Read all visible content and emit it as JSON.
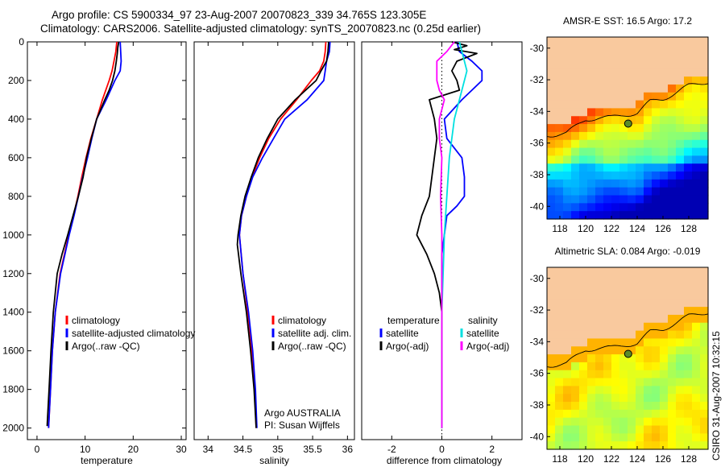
{
  "header": {
    "line1": "Argo profile: CS 5900334_97 23-Aug-2007 20070823_339 34.765S 123.305E",
    "line2": "Climatology: CARS2006. Satellite-adjusted climatology: synTS_20070823.nc (0.25d earlier)"
  },
  "colors": {
    "climatology": "#ff0000",
    "satellite": "#0000ff",
    "argo": "#000000",
    "satellite_cyan": "#00e0e0",
    "argo_adj_magenta": "#ff00ff",
    "land": "#f9c99e",
    "marker": "#5b8c2a"
  },
  "chart_data": [
    {
      "type": "line",
      "id": "temperature",
      "xlabel": "temperature",
      "ylabel": "",
      "xlim": [
        -2,
        31
      ],
      "ylim": [
        2060,
        0
      ],
      "y_inverted": true,
      "xticks": [
        0,
        10,
        20,
        30
      ],
      "yticks": [
        0,
        200,
        400,
        600,
        800,
        1000,
        1200,
        1400,
        1600,
        1800,
        2000
      ],
      "legend": {
        "position": "lower-right",
        "entries": [
          "climatology",
          "satellite-adjusted climatology",
          "Argo(..raw -QC)"
        ]
      },
      "series": [
        {
          "name": "climatology",
          "color": "#ff0000",
          "depth": [
            0,
            50,
            100,
            150,
            200,
            300,
            400,
            500,
            600,
            700,
            800,
            900,
            1000,
            1100,
            1200,
            1400,
            1600,
            1800,
            2000
          ],
          "values": [
            16.6,
            16.4,
            16.0,
            15.6,
            15.0,
            13.6,
            12.4,
            11.2,
            10.2,
            9.3,
            8.5,
            7.6,
            6.6,
            5.7,
            4.8,
            3.8,
            3.2,
            2.8,
            2.4
          ]
        },
        {
          "name": "satellite-adjusted climatology",
          "color": "#0000ff",
          "depth": [
            0,
            50,
            100,
            150,
            200,
            300,
            400,
            500,
            600,
            700,
            800,
            900,
            1000,
            1100,
            1200,
            1400,
            1600,
            1800,
            2000
          ],
          "values": [
            17.3,
            17.4,
            17.5,
            17.3,
            16.2,
            14.4,
            12.4,
            11.4,
            10.5,
            9.5,
            8.6,
            7.7,
            6.7,
            5.8,
            4.9,
            3.8,
            3.2,
            2.8,
            2.4
          ]
        },
        {
          "name": "Argo(..raw -QC)",
          "color": "#000000",
          "depth": [
            0,
            30,
            60,
            100,
            150,
            200,
            250,
            300,
            400,
            500,
            600,
            700,
            800,
            900,
            1000,
            1100,
            1200,
            1400,
            1600,
            1800,
            1990
          ],
          "values": [
            17.0,
            16.8,
            16.7,
            16.5,
            16.2,
            15.7,
            15.0,
            14.1,
            12.4,
            11.3,
            10.3,
            9.6,
            8.6,
            7.5,
            6.4,
            5.2,
            4.2,
            3.4,
            2.9,
            2.5,
            2.1
          ]
        }
      ]
    },
    {
      "type": "line",
      "id": "salinity",
      "xlabel": "salinity",
      "ylabel": "",
      "xlim": [
        33.8,
        36.1
      ],
      "ylim": [
        2060,
        0
      ],
      "y_inverted": true,
      "xticks": [
        34,
        34.5,
        35,
        35.5,
        36
      ],
      "xticklabels": [
        "34",
        "34.5",
        "35",
        "35.5",
        "36"
      ],
      "legend": {
        "position": "lower-right",
        "entries": [
          "climatology",
          "satellite adj. clim.",
          "Argo(..raw -QC)"
        ]
      },
      "annotation": [
        "Argo AUSTRALIA",
        "PI: Susan Wijffels"
      ],
      "series": [
        {
          "name": "climatology",
          "color": "#ff0000",
          "depth": [
            0,
            50,
            100,
            150,
            200,
            300,
            400,
            500,
            600,
            700,
            800,
            900,
            1000,
            1200,
            1400,
            1600,
            1800,
            2000
          ],
          "values": [
            35.69,
            35.68,
            35.66,
            35.6,
            35.48,
            35.27,
            35.04,
            34.87,
            34.74,
            34.63,
            34.55,
            34.48,
            34.45,
            34.5,
            34.57,
            34.63,
            34.67,
            34.69
          ]
        },
        {
          "name": "satellite adj. clim.",
          "color": "#0000ff",
          "depth": [
            0,
            50,
            100,
            150,
            200,
            300,
            400,
            500,
            600,
            700,
            800,
            900,
            1000,
            1200,
            1400,
            1600,
            1800,
            2000
          ],
          "values": [
            35.75,
            35.74,
            35.7,
            35.68,
            35.66,
            35.42,
            35.1,
            34.94,
            34.78,
            34.64,
            34.55,
            34.48,
            34.45,
            34.5,
            34.58,
            34.64,
            34.68,
            34.7
          ]
        },
        {
          "name": "Argo(..raw -QC)",
          "color": "#000000",
          "depth": [
            0,
            50,
            100,
            150,
            200,
            250,
            300,
            400,
            500,
            600,
            700,
            800,
            900,
            1000,
            1050,
            1200,
            1400,
            1600,
            1800,
            2000
          ],
          "values": [
            35.73,
            35.72,
            35.7,
            35.62,
            35.55,
            35.4,
            35.25,
            35.0,
            34.85,
            34.72,
            34.62,
            34.53,
            34.47,
            34.43,
            34.42,
            34.47,
            34.55,
            34.61,
            34.66,
            34.69
          ]
        }
      ]
    },
    {
      "type": "line",
      "id": "difference",
      "xlabel": "difference from climatology",
      "ylabel": "",
      "xlim": [
        -3.2,
        3.2
      ],
      "ylim": [
        2060,
        0
      ],
      "y_inverted": true,
      "xticks": [
        -2,
        0,
        2
      ],
      "zero_line": "dotted",
      "legend": {
        "position": "lower",
        "groups": [
          {
            "title": "temperature",
            "entries": [
              {
                "label": "satellite",
                "color": "#0000ff"
              },
              {
                "label": "Argo(-adj)",
                "color": "#000000"
              }
            ]
          },
          {
            "title": "salinity",
            "entries": [
              {
                "label": "satellite",
                "color": "#00e0e0"
              },
              {
                "label": "Argo(-adj)",
                "color": "#ff00ff"
              }
            ]
          }
        ]
      },
      "series": [
        {
          "name": "temperature satellite",
          "color": "#0000ff",
          "depth": [
            0,
            50,
            100,
            150,
            200,
            250,
            300,
            400,
            500,
            600,
            700,
            800,
            850,
            900,
            1000,
            1100,
            1200,
            1400,
            1600,
            1800,
            2000
          ],
          "values": [
            0.6,
            0.7,
            1.2,
            1.6,
            1.6,
            1.2,
            0.8,
            0.1,
            0.2,
            0.8,
            0.9,
            0.9,
            0.6,
            0.2,
            0.1,
            0.0,
            0.0,
            0.0,
            0.0,
            0.0,
            0.0
          ]
        },
        {
          "name": "temperature Argo(-adj)",
          "color": "#000000",
          "depth": [
            0,
            20,
            40,
            60,
            80,
            100,
            150,
            200,
            250,
            300,
            400,
            500,
            600,
            700,
            800,
            900,
            1000,
            1100,
            1200,
            1300,
            1400,
            1600,
            1800,
            2000
          ],
          "values": [
            0.4,
            1.0,
            0.5,
            1.4,
            1.0,
            0.6,
            0.4,
            0.6,
            0.7,
            -0.5,
            -0.3,
            -0.2,
            -0.3,
            -0.4,
            -0.5,
            -0.8,
            -1.0,
            -0.6,
            -0.3,
            -0.1,
            0.0,
            0.0,
            0.0,
            0.0
          ]
        },
        {
          "name": "salinity satellite",
          "color": "#00e0e0",
          "depth": [
            0,
            50,
            100,
            150,
            200,
            300,
            400,
            500,
            600,
            800,
            1000,
            1200,
            1400,
            1600,
            1800,
            2000
          ],
          "values": [
            0.7,
            0.8,
            0.9,
            1.0,
            0.9,
            0.7,
            0.5,
            0.4,
            0.3,
            0.2,
            0.1,
            0.05,
            0.0,
            0.0,
            0.0,
            0.0
          ]
        },
        {
          "name": "salinity Argo(-adj)",
          "color": "#ff00ff",
          "depth": [
            0,
            50,
            100,
            150,
            200,
            250,
            300,
            400,
            500,
            600,
            800,
            1000,
            1200,
            1400,
            1600,
            1800,
            2000
          ],
          "values": [
            0.5,
            0.2,
            -0.2,
            -0.2,
            -0.2,
            -0.1,
            0.1,
            -0.1,
            -0.1,
            0.0,
            -0.05,
            0.0,
            0.0,
            0.0,
            0.0,
            0.0,
            0.0
          ]
        }
      ]
    },
    {
      "type": "heatmap",
      "id": "sst_map",
      "title": "AMSR-E SST: 16.5 Argo: 17.2",
      "xlim": [
        117,
        129.5
      ],
      "ylim": [
        -40.8,
        -29.3
      ],
      "xticks": [
        118,
        120,
        122,
        124,
        126,
        128
      ],
      "yticks": [
        -30,
        -32,
        -34,
        -36,
        -38,
        -40
      ],
      "marker": {
        "lon": 123.3,
        "lat": -34.77
      },
      "colormap": "jet"
    },
    {
      "type": "heatmap",
      "id": "sla_map",
      "title": "Altimetric SLA: 0.084 Argo: -0.019",
      "xlim": [
        117,
        129.5
      ],
      "ylim": [
        -40.8,
        -29.3
      ],
      "xticks": [
        118,
        120,
        122,
        124,
        126,
        128
      ],
      "yticks": [
        -30,
        -32,
        -34,
        -36,
        -38,
        -40
      ],
      "marker": {
        "lon": 123.3,
        "lat": -34.77
      },
      "colormap": "jet"
    }
  ],
  "footer": {
    "credit": "CSIRO 31-Aug-2007 10:32:15"
  }
}
